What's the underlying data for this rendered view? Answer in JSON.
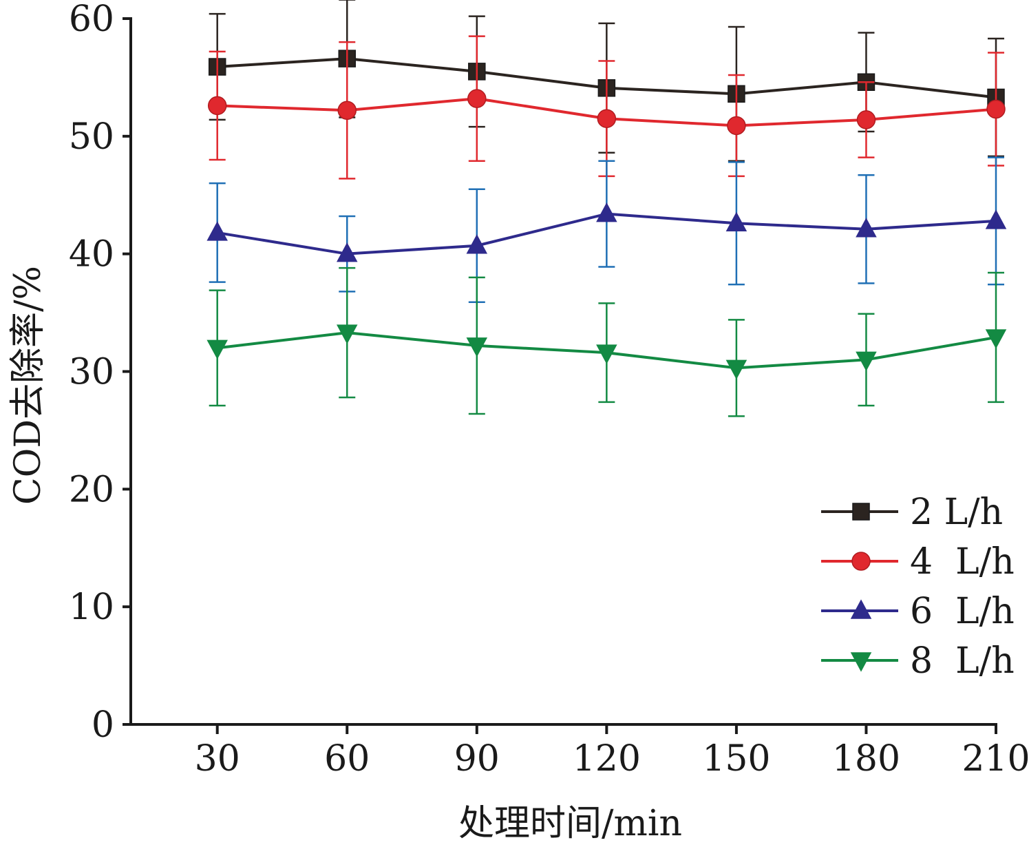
{
  "chart_data": {
    "type": "line",
    "xlabel": "处理时间/min",
    "ylabel": "COD去除率/%",
    "x": [
      30,
      60,
      90,
      120,
      150,
      180,
      210
    ],
    "xlim": [
      10,
      210
    ],
    "ylim": [
      0,
      60
    ],
    "xticks": [
      "30",
      "60",
      "90",
      "120",
      "150",
      "180",
      "210"
    ],
    "yticks": [
      "0",
      "10",
      "20",
      "30",
      "40",
      "50",
      "60"
    ],
    "legend_position": "bottom-right",
    "series": [
      {
        "name": "2 L/h",
        "label": "2 L/h",
        "color": "#2b2420",
        "marker": "square",
        "values": [
          55.9,
          56.6,
          55.5,
          54.1,
          53.6,
          54.6,
          53.3
        ],
        "errors": [
          4.5,
          5.0,
          4.7,
          5.5,
          5.7,
          4.2,
          5.0
        ]
      },
      {
        "name": "4 L/h",
        "label": "4  L/h",
        "color": "#e0282e",
        "marker": "circle",
        "values": [
          52.6,
          52.2,
          53.2,
          51.5,
          50.9,
          51.4,
          52.3
        ],
        "errors": [
          4.6,
          5.8,
          5.3,
          4.9,
          4.3,
          3.2,
          4.8
        ]
      },
      {
        "name": "6 L/h",
        "label": "6  L/h",
        "color": "#2e2a8c",
        "errorColor": "#1f6fb5",
        "marker": "triangle-up",
        "values": [
          41.8,
          40.0,
          40.7,
          43.4,
          42.6,
          42.1,
          42.8
        ],
        "errors": [
          4.2,
          3.2,
          4.8,
          4.5,
          5.2,
          4.6,
          5.4
        ]
      },
      {
        "name": "8 L/h",
        "label": "8  L/h",
        "color": "#138a43",
        "marker": "triangle-down",
        "values": [
          32.0,
          33.3,
          32.2,
          31.6,
          30.3,
          31.0,
          32.9
        ],
        "errors": [
          4.9,
          5.5,
          5.8,
          4.2,
          4.1,
          3.9,
          5.5
        ]
      }
    ]
  }
}
